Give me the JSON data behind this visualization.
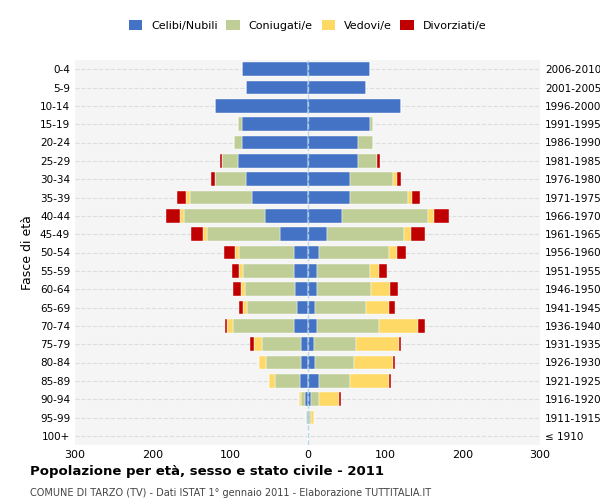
{
  "age_groups": [
    "100+",
    "95-99",
    "90-94",
    "85-89",
    "80-84",
    "75-79",
    "70-74",
    "65-69",
    "60-64",
    "55-59",
    "50-54",
    "45-49",
    "40-44",
    "35-39",
    "30-34",
    "25-29",
    "20-24",
    "15-19",
    "10-14",
    "5-9",
    "0-4"
  ],
  "birth_years": [
    "≤ 1910",
    "1911-1915",
    "1916-1920",
    "1921-1925",
    "1926-1930",
    "1931-1935",
    "1936-1940",
    "1941-1945",
    "1946-1950",
    "1951-1955",
    "1956-1960",
    "1961-1965",
    "1966-1970",
    "1971-1975",
    "1976-1980",
    "1981-1985",
    "1986-1990",
    "1991-1995",
    "1996-2000",
    "2001-2005",
    "2006-2010"
  ],
  "male": {
    "celibi": [
      0,
      1,
      3,
      10,
      8,
      9,
      18,
      13,
      16,
      18,
      18,
      35,
      55,
      72,
      80,
      90,
      85,
      85,
      120,
      80,
      85
    ],
    "coniugati": [
      0,
      1,
      5,
      32,
      45,
      50,
      78,
      65,
      65,
      65,
      70,
      95,
      105,
      80,
      40,
      20,
      10,
      5,
      0,
      0,
      0
    ],
    "vedovi": [
      0,
      0,
      3,
      8,
      10,
      10,
      8,
      5,
      5,
      5,
      5,
      5,
      5,
      5,
      0,
      0,
      0,
      0,
      0,
      0,
      0
    ],
    "divorziati": [
      0,
      0,
      0,
      0,
      0,
      5,
      3,
      5,
      10,
      10,
      15,
      15,
      18,
      12,
      5,
      3,
      0,
      0,
      0,
      0,
      0
    ]
  },
  "female": {
    "nubili": [
      0,
      2,
      5,
      15,
      10,
      8,
      12,
      10,
      12,
      12,
      15,
      25,
      45,
      55,
      55,
      65,
      65,
      80,
      120,
      75,
      80
    ],
    "coniugate": [
      0,
      2,
      10,
      40,
      50,
      55,
      80,
      65,
      70,
      68,
      90,
      100,
      110,
      75,
      55,
      25,
      20,
      5,
      0,
      0,
      0
    ],
    "vedove": [
      0,
      5,
      25,
      50,
      50,
      55,
      50,
      30,
      25,
      12,
      10,
      8,
      8,
      5,
      5,
      0,
      0,
      0,
      0,
      0,
      0
    ],
    "divorziate": [
      0,
      0,
      3,
      3,
      3,
      3,
      10,
      8,
      10,
      10,
      12,
      18,
      20,
      10,
      5,
      3,
      0,
      0,
      0,
      0,
      0
    ]
  },
  "colors": {
    "celibi": "#4472C4",
    "coniugati": "#BFCE96",
    "vedovi": "#FFD966",
    "divorziati": "#C00000"
  },
  "title": "Popolazione per età, sesso e stato civile - 2011",
  "subtitle": "COMUNE DI TARZO (TV) - Dati ISTAT 1° gennaio 2011 - Elaborazione TUTTITALIA.IT",
  "ylabel_left": "Fasce di età",
  "xlim": 300,
  "legend_labels": [
    "Celibi/Nubili",
    "Coniugati/e",
    "Vedovi/e",
    "Divorziati/e"
  ],
  "background_color": "#f5f5f5",
  "plot_background": "#ffffff"
}
